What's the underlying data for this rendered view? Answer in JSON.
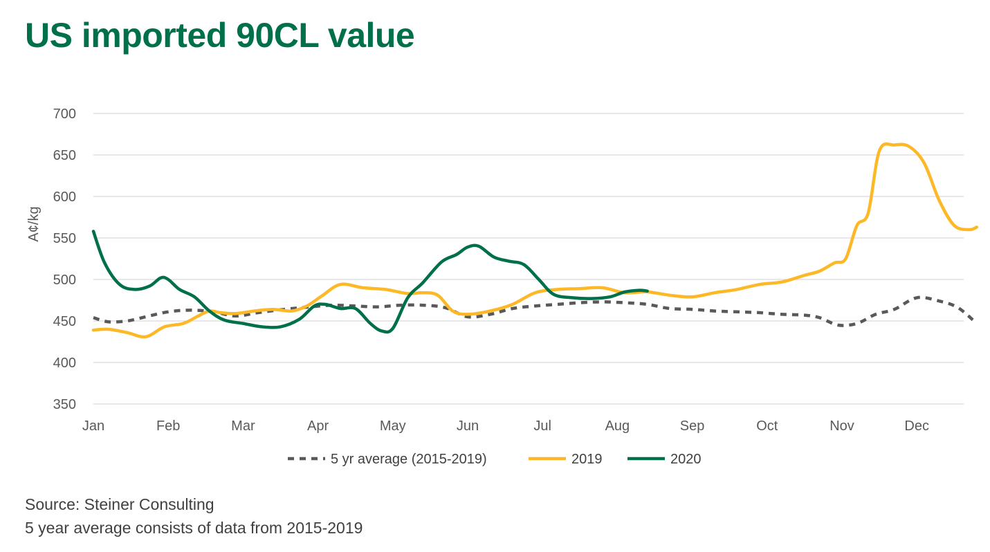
{
  "chart_data": {
    "type": "line",
    "title": "US imported 90CL value",
    "ylabel": "A¢/kg",
    "xlabel": "",
    "ylim": [
      350,
      700
    ],
    "yticks": [
      350,
      400,
      450,
      500,
      550,
      600,
      650,
      700
    ],
    "categories": [
      "Jan",
      "Feb",
      "Mar",
      "Apr",
      "May",
      "Jun",
      "Jul",
      "Aug",
      "Sep",
      "Oct",
      "Nov",
      "Dec"
    ],
    "xlim": [
      0,
      11.8
    ],
    "grid": true,
    "legend_position": "bottom",
    "series": [
      {
        "name": "5 yr average (2015-2019)",
        "color": "#595959",
        "style": "dashed",
        "x": [
          0,
          0.2,
          0.45,
          0.7,
          1.0,
          1.3,
          1.6,
          1.9,
          2.2,
          2.55,
          2.9,
          3.2,
          3.5,
          3.8,
          4.1,
          4.4,
          4.7,
          5.0,
          5.3,
          5.6,
          5.9,
          6.2,
          6.5,
          6.8,
          7.1,
          7.4,
          7.7,
          8.0,
          8.3,
          8.6,
          8.9,
          9.2,
          9.5,
          9.7,
          9.95,
          10.2,
          10.45,
          10.7,
          11.0,
          11.3,
          11.55,
          11.8
        ],
        "values": [
          454,
          449,
          450,
          455,
          461,
          463,
          461,
          456,
          460,
          464,
          467,
          469,
          468,
          467,
          469,
          469,
          466,
          455,
          458,
          465,
          468,
          470,
          472,
          473,
          472,
          470,
          465,
          464,
          462,
          461,
          460,
          458,
          457,
          454,
          445,
          447,
          458,
          464,
          478,
          474,
          466,
          447
        ]
      },
      {
        "name": "2019",
        "color": "#FDB827",
        "style": "solid",
        "x": [
          0,
          0.2,
          0.45,
          0.7,
          0.95,
          1.2,
          1.4,
          1.55,
          1.7,
          1.9,
          2.15,
          2.4,
          2.65,
          2.85,
          3.05,
          3.3,
          3.6,
          3.9,
          4.2,
          4.4,
          4.6,
          4.8,
          5.0,
          5.3,
          5.6,
          5.9,
          6.2,
          6.5,
          6.8,
          7.1,
          7.4,
          7.7,
          8.0,
          8.3,
          8.6,
          8.9,
          9.2,
          9.5,
          9.7,
          9.9,
          10.05,
          10.2,
          10.35,
          10.5,
          10.7,
          10.9,
          11.1,
          11.3,
          11.5,
          11.7,
          11.8
        ],
        "values": [
          439,
          440,
          436,
          431,
          443,
          447,
          456,
          462,
          460,
          459,
          462,
          464,
          462,
          468,
          480,
          494,
          490,
          488,
          483,
          484,
          481,
          462,
          458,
          462,
          470,
          484,
          488,
          489,
          490,
          484,
          485,
          481,
          479,
          484,
          488,
          494,
          497,
          505,
          510,
          520,
          525,
          565,
          580,
          655,
          662,
          660,
          640,
          595,
          565,
          560,
          563
        ]
      },
      {
        "name": "2020",
        "color": "#00704A",
        "style": "solid",
        "x": [
          0,
          0.15,
          0.35,
          0.55,
          0.75,
          0.9,
          1.0,
          1.15,
          1.35,
          1.55,
          1.75,
          2.0,
          2.25,
          2.5,
          2.75,
          2.95,
          3.1,
          3.3,
          3.5,
          3.7,
          3.85,
          4.0,
          4.2,
          4.4,
          4.65,
          4.85,
          5.0,
          5.15,
          5.35,
          5.55,
          5.75,
          5.95,
          6.15,
          6.4,
          6.65,
          6.9,
          7.1,
          7.3,
          7.4
        ],
        "values": [
          558,
          520,
          494,
          488,
          492,
          502,
          500,
          488,
          479,
          462,
          451,
          447,
          443,
          443,
          452,
          468,
          470,
          465,
          465,
          447,
          438,
          441,
          478,
          496,
          521,
          530,
          539,
          540,
          527,
          522,
          518,
          500,
          482,
          478,
          477,
          479,
          485,
          487,
          486
        ]
      }
    ]
  },
  "footer": {
    "line1": "Source: Steiner Consulting",
    "line2": "5 year average consists of data from 2015-2019"
  }
}
